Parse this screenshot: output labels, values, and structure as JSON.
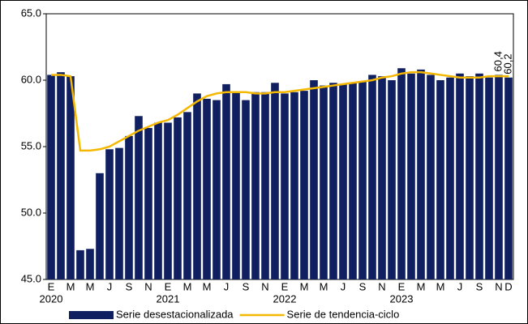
{
  "chart_data": {
    "type": "bar_line",
    "categories": [
      "E",
      null,
      "M",
      null,
      "M",
      null,
      "J",
      null,
      "S",
      null,
      "N",
      null,
      "E",
      null,
      "M",
      null,
      "M",
      null,
      "J",
      null,
      "S",
      null,
      "N",
      null,
      "E",
      null,
      "M",
      null,
      "M",
      null,
      "J",
      null,
      "S",
      null,
      "N",
      null,
      "E",
      null,
      "M",
      null,
      "M",
      null,
      "J",
      null,
      "S",
      null,
      "N",
      "D"
    ],
    "groups": [
      "2020",
      "2021",
      "2022",
      "2023"
    ],
    "series": [
      {
        "name": "Serie desestacionalizada",
        "type": "bar",
        "color": "#0f1f5f",
        "values": [
          60.4,
          60.6,
          60.3,
          47.2,
          47.3,
          53.0,
          54.8,
          54.9,
          55.8,
          57.3,
          56.4,
          56.8,
          56.8,
          57.2,
          57.6,
          59.0,
          58.6,
          58.5,
          59.7,
          59.1,
          58.5,
          59.1,
          59.1,
          59.8,
          59.0,
          59.1,
          59.2,
          60.0,
          59.6,
          59.8,
          59.7,
          59.8,
          59.9,
          60.4,
          60.3,
          60.0,
          60.9,
          60.5,
          60.8,
          60.4,
          60.0,
          60.2,
          60.5,
          60.3,
          60.5,
          60.2,
          60.4,
          60.2
        ],
        "value_labels": [
          null,
          null,
          null,
          null,
          null,
          null,
          null,
          null,
          null,
          null,
          null,
          null,
          null,
          null,
          null,
          null,
          null,
          null,
          null,
          null,
          null,
          null,
          null,
          null,
          null,
          null,
          null,
          null,
          null,
          null,
          null,
          null,
          null,
          null,
          null,
          null,
          null,
          null,
          null,
          null,
          null,
          null,
          null,
          null,
          null,
          null,
          "60,4",
          "60,2"
        ]
      },
      {
        "name": "Serie de tendencia-ciclo",
        "type": "line",
        "color": "#f5b800",
        "values": [
          60.4,
          60.4,
          60.3,
          54.7,
          54.7,
          54.8,
          55.0,
          55.4,
          55.8,
          56.2,
          56.5,
          56.8,
          57.0,
          57.4,
          57.9,
          58.4,
          58.8,
          59.0,
          59.1,
          59.1,
          59.1,
          59.0,
          59.0,
          59.1,
          59.1,
          59.2,
          59.3,
          59.4,
          59.5,
          59.6,
          59.7,
          59.8,
          59.9,
          60.0,
          60.2,
          60.3,
          60.5,
          60.6,
          60.6,
          60.5,
          60.4,
          60.3,
          60.2,
          60.2,
          60.2,
          60.3,
          60.3,
          60.3
        ]
      }
    ],
    "ylim": [
      45,
      65
    ],
    "yticks": [
      {
        "value": 45,
        "label": "45.0"
      },
      {
        "value": 50,
        "label": "50.0"
      },
      {
        "value": 55,
        "label": "55.0"
      },
      {
        "value": 60,
        "label": "60.0"
      },
      {
        "value": 65,
        "label": "65.0"
      }
    ],
    "legend": "bottom"
  }
}
